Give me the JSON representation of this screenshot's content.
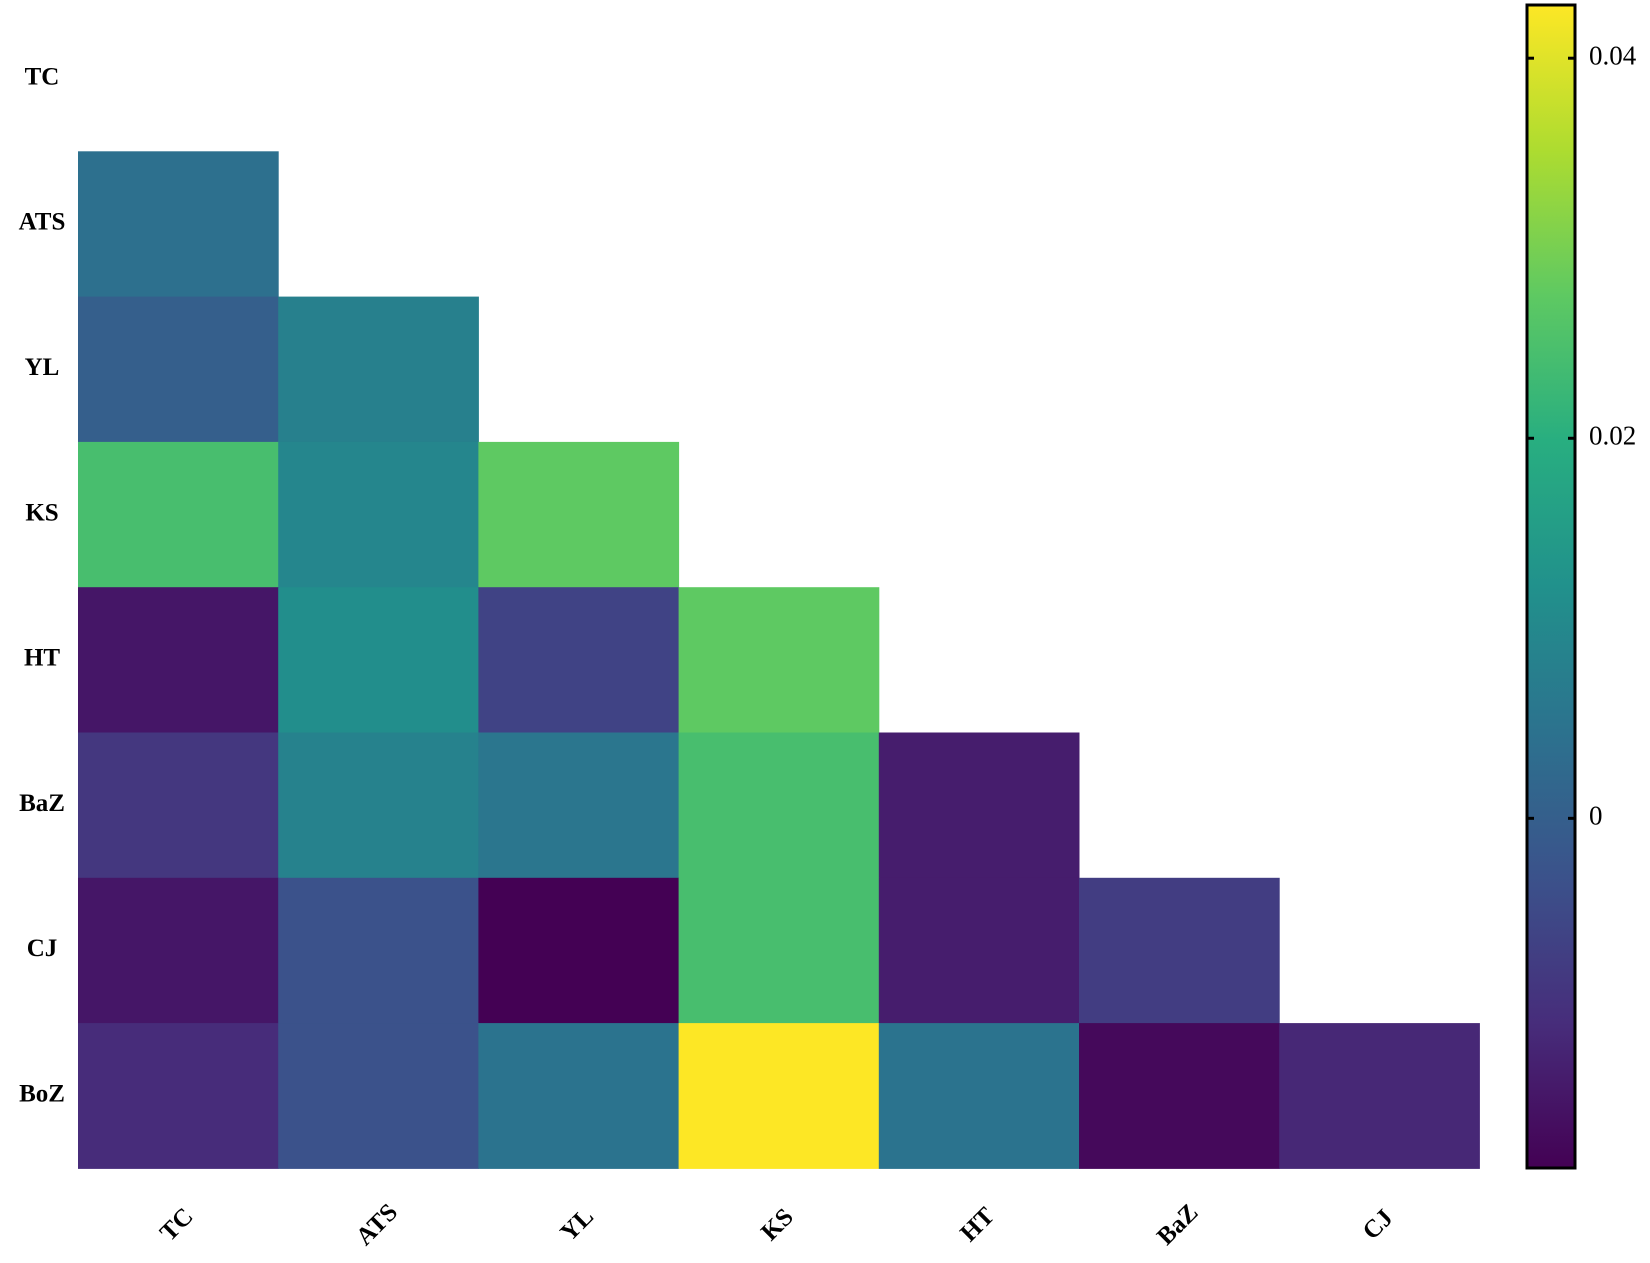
{
  "chart_data": {
    "type": "heatmap",
    "rows": [
      "TC",
      "ATS",
      "YL",
      "KS",
      "HT",
      "BaZ",
      "CJ",
      "BoZ"
    ],
    "columns": [
      "TC",
      "ATS",
      "YL",
      "KS",
      "HT",
      "BaZ",
      "CJ"
    ],
    "values": [
      [
        null,
        null,
        null,
        null,
        null,
        null,
        null
      ],
      [
        0.004,
        null,
        null,
        null,
        null,
        null,
        null
      ],
      [
        0.0,
        0.008,
        null,
        null,
        null,
        null,
        null
      ],
      [
        0.0244,
        0.0095,
        0.0275,
        null,
        null,
        null,
        null
      ],
      [
        -0.0147,
        0.0115,
        -0.0062,
        0.0275,
        null,
        null,
        null
      ],
      [
        -0.0086,
        0.0085,
        0.0055,
        0.0244,
        -0.0135,
        null,
        null
      ],
      [
        -0.0147,
        -0.0031,
        -0.0184,
        0.0244,
        -0.0135,
        -0.0074,
        null
      ],
      [
        -0.011,
        -0.0031,
        0.0049,
        0.0428,
        0.0049,
        -0.017,
        -0.0117
      ]
    ],
    "colormap": [
      "#440154",
      "#472d7b",
      "#3b528b",
      "#2c728e",
      "#21918c",
      "#28ae80",
      "#5ec962",
      "#addc30",
      "#fde725"
    ],
    "colorbar_lim": [
      -0.0184,
      0.0428
    ],
    "colorbar_ticks": [
      0,
      0.02,
      0.04
    ]
  }
}
